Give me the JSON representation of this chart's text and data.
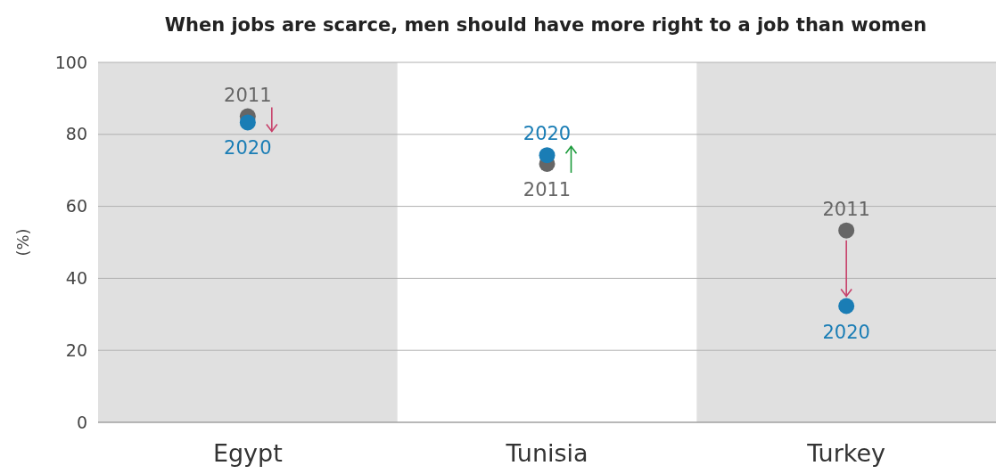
{
  "chart_data": {
    "type": "scatter",
    "title": "When jobs are scarce, men should have more right to a job than women",
    "ylabel": "(%)",
    "categories": [
      "Egypt",
      "Tunisia",
      "Turkey"
    ],
    "series": [
      {
        "name": "2011",
        "color": "#666666",
        "values": [
          85,
          71.8,
          53.3
        ]
      },
      {
        "name": "2020",
        "color": "#1a7db5",
        "values": [
          83.3,
          74.2,
          32.3
        ]
      }
    ],
    "ylim": [
      0,
      100
    ],
    "yticks": [
      0,
      20,
      40,
      60,
      80,
      100
    ],
    "grid": "y",
    "marker": "circle",
    "bands": [
      {
        "axis": "x",
        "from": "Egypt",
        "to": "Egypt",
        "color": "#e0e0e0"
      },
      {
        "axis": "x",
        "from": "Turkey",
        "to": "Turkey",
        "color": "#e0e0e0"
      }
    ]
  }
}
